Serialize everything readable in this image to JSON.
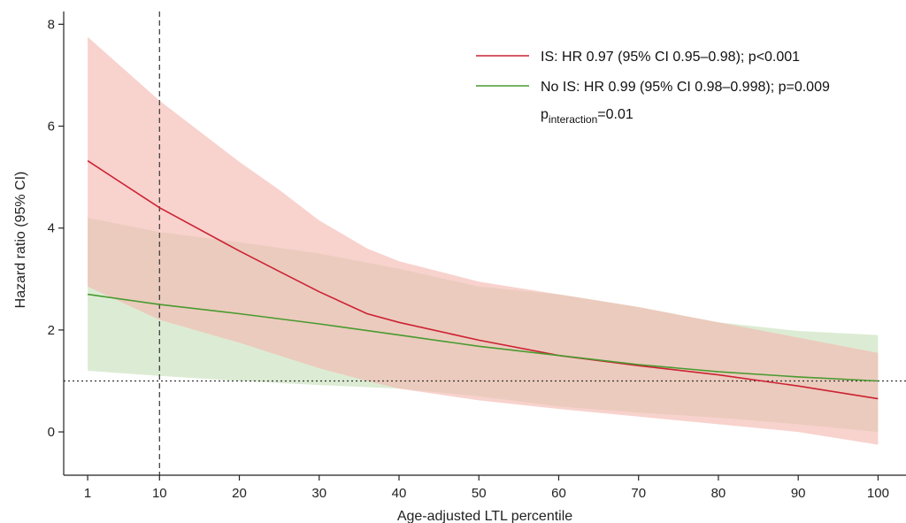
{
  "chart_data": {
    "type": "line",
    "title": "",
    "xlabel": "Age-adjusted LTL percentile",
    "ylabel": "Hazard ratio (95% CI)",
    "x_ticks": [
      1,
      10,
      20,
      30,
      40,
      50,
      60,
      70,
      80,
      90,
      100
    ],
    "y_ticks": [
      0,
      2,
      4,
      6,
      8
    ],
    "xlim": [
      -2,
      103.5
    ],
    "ylim": [
      -0.85,
      8.25
    ],
    "grid": false,
    "legend_position": "top-right",
    "reference_lines": {
      "hr": 1,
      "percentile": 10
    },
    "series": [
      {
        "name": "IS: HR 0.97 (95% CI 0.95–0.98); p<0.001",
        "color": "#cc2233",
        "band_color": "#f4b7ae",
        "x": [
          1,
          10,
          20,
          25,
          30,
          36,
          40,
          50,
          60,
          70,
          80,
          90,
          100
        ],
        "y": [
          5.32,
          4.4,
          3.55,
          3.15,
          2.75,
          2.32,
          2.15,
          1.8,
          1.5,
          1.3,
          1.12,
          0.9,
          0.65
        ],
        "lower": [
          2.85,
          2.2,
          1.75,
          1.5,
          1.25,
          1.0,
          0.85,
          0.62,
          0.45,
          0.3,
          0.15,
          0.0,
          -0.25
        ],
        "upper": [
          7.75,
          6.5,
          5.3,
          4.75,
          4.15,
          3.6,
          3.35,
          2.95,
          2.7,
          2.45,
          2.15,
          1.85,
          1.55
        ]
      },
      {
        "name": "No IS: HR 0.99 (95% CI 0.98–0.998); p=0.009",
        "color": "#4a9a30",
        "band_color": "#d6e9cc",
        "x": [
          1,
          10,
          20,
          30,
          40,
          50,
          60,
          70,
          80,
          90,
          100
        ],
        "y": [
          2.7,
          2.5,
          2.32,
          2.12,
          1.9,
          1.68,
          1.5,
          1.32,
          1.18,
          1.08,
          1.0
        ],
        "lower": [
          1.2,
          1.1,
          1.0,
          0.92,
          0.85,
          0.7,
          0.5,
          0.38,
          0.28,
          0.15,
          0.0
        ],
        "upper": [
          4.2,
          3.92,
          3.72,
          3.5,
          3.2,
          2.85,
          2.7,
          2.45,
          2.15,
          1.98,
          1.9
        ]
      }
    ],
    "annotation": {
      "text": "p",
      "subscript": "interaction",
      "suffix": "=0.01"
    }
  }
}
